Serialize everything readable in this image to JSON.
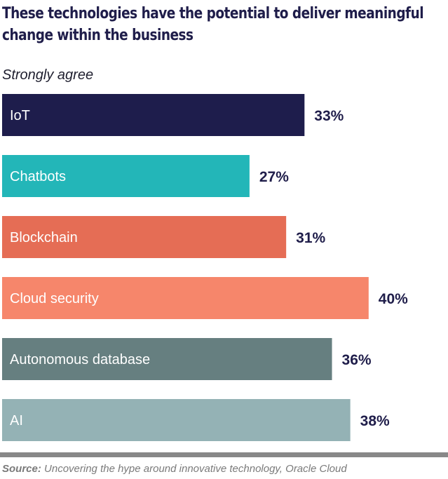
{
  "title_lines": [
    "These technologies have the potential to deliver meaningful",
    "change within the business"
  ],
  "subtitle": "Strongly agree",
  "source": {
    "label": "Source:",
    "text": "Uncovering the hype around innovative technology, Oracle Cloud"
  },
  "chart_data": {
    "type": "bar",
    "orientation": "horizontal",
    "title": "These technologies have the potential to deliver meaningful change within the business",
    "subtitle": "Strongly agree",
    "categories": [
      "IoT",
      "Chatbots",
      "Blockchain",
      "Cloud security",
      "Autonomous database",
      "AI"
    ],
    "values": [
      33,
      27,
      31,
      40,
      36,
      38
    ],
    "value_labels": [
      "33%",
      "27%",
      "31%",
      "40%",
      "36%",
      "38%"
    ],
    "colors": [
      "#1e1d4c",
      "#23b6b8",
      "#e56d55",
      "#f6866b",
      "#667f80",
      "#94b2b5"
    ],
    "label_text_color": "#ffffff",
    "value_label_color": "#1f1d4a",
    "legend": "none",
    "grid": false
  }
}
